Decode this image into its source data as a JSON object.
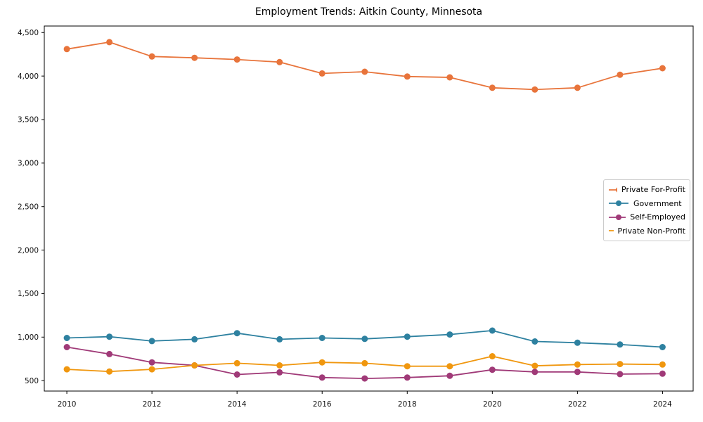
{
  "chart_data": {
    "type": "line",
    "title": "Employment Trends: Aitkin County, Minnesota",
    "xlabel": "",
    "ylabel": "",
    "x": [
      2010,
      2011,
      2012,
      2013,
      2014,
      2015,
      2016,
      2017,
      2018,
      2019,
      2020,
      2021,
      2022,
      2023,
      2024
    ],
    "x_tick_labels": [
      "2010",
      "2012",
      "2014",
      "2016",
      "2018",
      "2020",
      "2022",
      "2024"
    ],
    "x_tick_values": [
      2010,
      2012,
      2014,
      2016,
      2018,
      2020,
      2022,
      2024
    ],
    "y_ticks": [
      500,
      1000,
      1500,
      2000,
      2500,
      3000,
      3500,
      4000,
      4500
    ],
    "y_tick_labels": [
      "500",
      "1,000",
      "1,500",
      "2,000",
      "2,500",
      "3,000",
      "3,500",
      "4,000",
      "4,500"
    ],
    "xlim": [
      2009.47,
      2024.72
    ],
    "ylim": [
      380,
      4575
    ],
    "grid": false,
    "legend_position": "center right",
    "marker": "circle",
    "series": [
      {
        "name": "Private For-Profit",
        "color": "#E8743B",
        "values": [
          4310,
          4390,
          4225,
          4210,
          4190,
          4160,
          4030,
          4050,
          3995,
          3985,
          3865,
          3845,
          3865,
          4015,
          4090
        ]
      },
      {
        "name": "Government",
        "color": "#2E81A0",
        "values": [
          990,
          1005,
          955,
          975,
          1045,
          975,
          990,
          980,
          1005,
          1030,
          1075,
          950,
          935,
          915,
          885
        ]
      },
      {
        "name": "Self-Employed",
        "color": "#A03A78",
        "values": [
          885,
          805,
          710,
          675,
          570,
          595,
          535,
          525,
          535,
          555,
          625,
          600,
          600,
          575,
          580
        ]
      },
      {
        "name": "Private Non-Profit",
        "color": "#F0970F",
        "values": [
          630,
          605,
          630,
          675,
          700,
          675,
          710,
          700,
          665,
          665,
          780,
          670,
          685,
          690,
          685
        ]
      }
    ],
    "axis_color": "#000000",
    "legend_border_color": "#cccccc"
  }
}
